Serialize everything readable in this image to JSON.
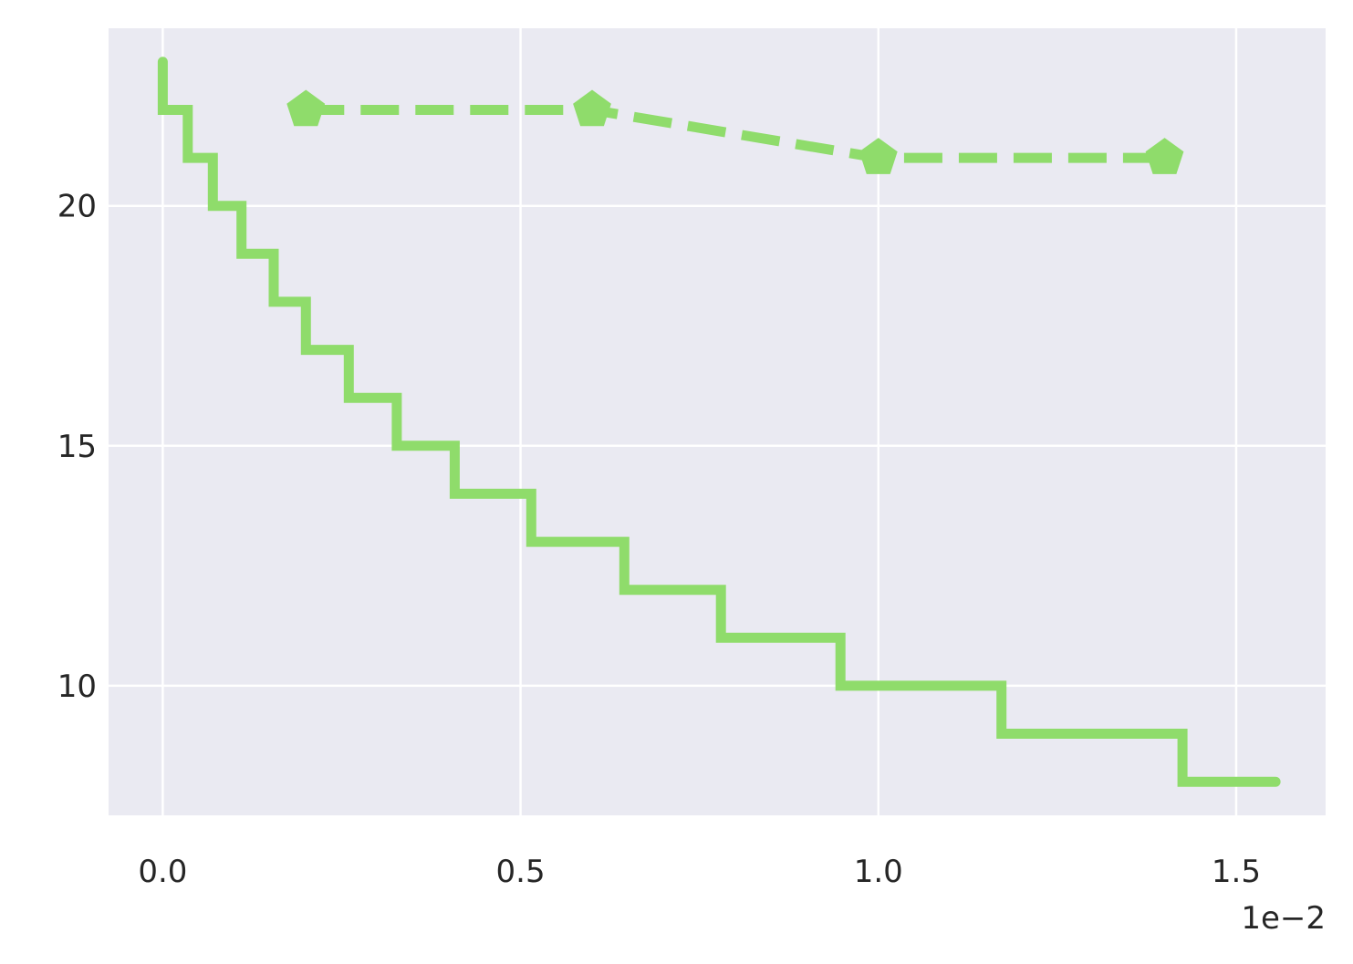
{
  "chart_data": {
    "type": "line",
    "title": "",
    "xlabel": "",
    "ylabel": "",
    "x_offset_label": "1e−2",
    "xlim": [
      -0.0757,
      1.625
    ],
    "ylim": [
      7.3,
      23.7
    ],
    "x_ticks": [
      0.0,
      0.5,
      1.0,
      1.5
    ],
    "x_tick_labels": [
      "0.0",
      "0.5",
      "1.0",
      "1.5"
    ],
    "y_ticks": [
      10,
      15,
      20
    ],
    "y_tick_labels": [
      "10",
      "15",
      "20"
    ],
    "grid": true,
    "legend": null,
    "colors": {
      "background": "#eaeaf2",
      "grid": "#ffffff",
      "series": "#8fdc6b"
    },
    "series": [
      {
        "style": "step-solid",
        "points": [
          [
            0.0,
            23
          ],
          [
            0.0,
            22
          ],
          [
            0.035,
            22
          ],
          [
            0.035,
            21
          ],
          [
            0.07,
            21
          ],
          [
            0.07,
            20
          ],
          [
            0.11,
            20
          ],
          [
            0.11,
            19
          ],
          [
            0.155,
            19
          ],
          [
            0.155,
            18
          ],
          [
            0.2,
            18
          ],
          [
            0.2,
            17
          ],
          [
            0.26,
            17
          ],
          [
            0.26,
            16
          ],
          [
            0.327,
            16
          ],
          [
            0.327,
            15
          ],
          [
            0.408,
            15
          ],
          [
            0.408,
            14
          ],
          [
            0.515,
            14
          ],
          [
            0.515,
            13
          ],
          [
            0.645,
            13
          ],
          [
            0.645,
            12
          ],
          [
            0.78,
            12
          ],
          [
            0.78,
            11
          ],
          [
            0.947,
            11
          ],
          [
            0.947,
            10
          ],
          [
            1.172,
            10
          ],
          [
            1.172,
            9
          ],
          [
            1.425,
            9
          ],
          [
            1.425,
            8
          ],
          [
            1.555,
            8
          ]
        ]
      },
      {
        "style": "dashed-pentagon-markers",
        "points": [
          [
            0.2,
            22
          ],
          [
            0.6,
            22
          ],
          [
            1.0,
            21
          ],
          [
            1.4,
            21
          ]
        ]
      }
    ]
  }
}
